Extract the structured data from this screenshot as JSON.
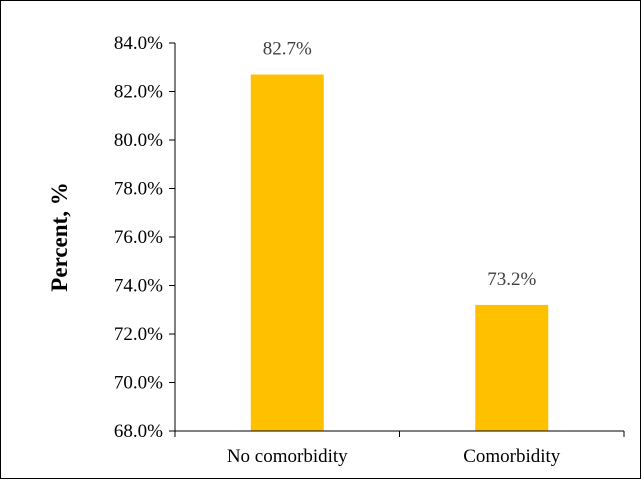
{
  "chart_data": {
    "type": "bar",
    "categories": [
      "No comorbidity",
      "Comorbidity"
    ],
    "values": [
      82.7,
      73.2
    ],
    "data_labels": [
      "82.7%",
      "73.2%"
    ],
    "ylabel": "Percent, %",
    "ylim": [
      68.0,
      84.0
    ],
    "yticks": [
      68.0,
      70.0,
      72.0,
      74.0,
      76.0,
      78.0,
      80.0,
      82.0,
      84.0
    ],
    "ytick_labels": [
      "68.0%",
      "70.0%",
      "72.0%",
      "74.0%",
      "76.0%",
      "78.0%",
      "80.0%",
      "82.0%",
      "84.0%"
    ],
    "grid": false,
    "legend": "none",
    "bar_color": "#FFC000"
  }
}
